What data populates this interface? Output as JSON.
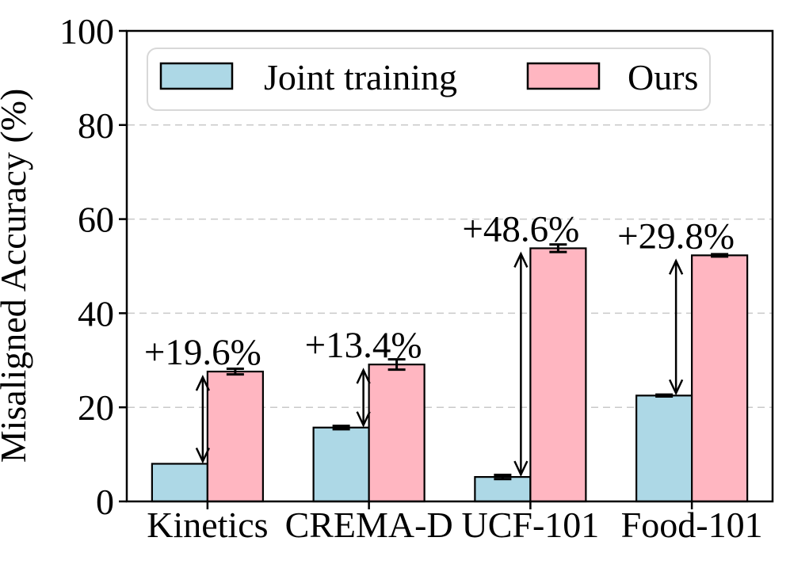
{
  "figure_title": "Misaligned accuracy comparison bar chart",
  "chart_data": {
    "type": "bar",
    "title": "",
    "xlabel": "",
    "ylabel": "Misaligned Accuracy (%)",
    "categories": [
      "Kinetics",
      "CREMA-D",
      "UCF-101",
      "Food-101"
    ],
    "series": [
      {
        "name": "Joint training",
        "color": "#ADD8E6",
        "edge_color": "#000000",
        "values": [
          8.0,
          15.7,
          5.2,
          22.5
        ],
        "errors": [
          0.0,
          0.35,
          0.45,
          0.2
        ]
      },
      {
        "name": "Ours",
        "color": "#FFB6C1",
        "edge_color": "#000000",
        "values": [
          27.6,
          29.1,
          53.8,
          52.3
        ],
        "errors": [
          0.6,
          1.1,
          0.8,
          0.25
        ]
      }
    ],
    "annotations": [
      {
        "category": "Kinetics",
        "label": "+19.6%",
        "dx": -6
      },
      {
        "category": "CREMA-D",
        "label": "+13.4%",
        "dx": -7
      },
      {
        "category": "UCF-101",
        "label": "+48.6%",
        "dx": -12
      },
      {
        "category": "Food-101",
        "label": "+29.8%",
        "dx": -20
      }
    ],
    "ylim": [
      0,
      100
    ],
    "yticks": [
      0,
      20,
      40,
      60,
      80,
      100
    ],
    "grid": {
      "axis": "y",
      "style": "dashed",
      "color": "#c9c9c9"
    },
    "axis_color": "#000000",
    "legend": {
      "position": "upper left",
      "entries": [
        "Joint training",
        "Ours"
      ]
    }
  }
}
